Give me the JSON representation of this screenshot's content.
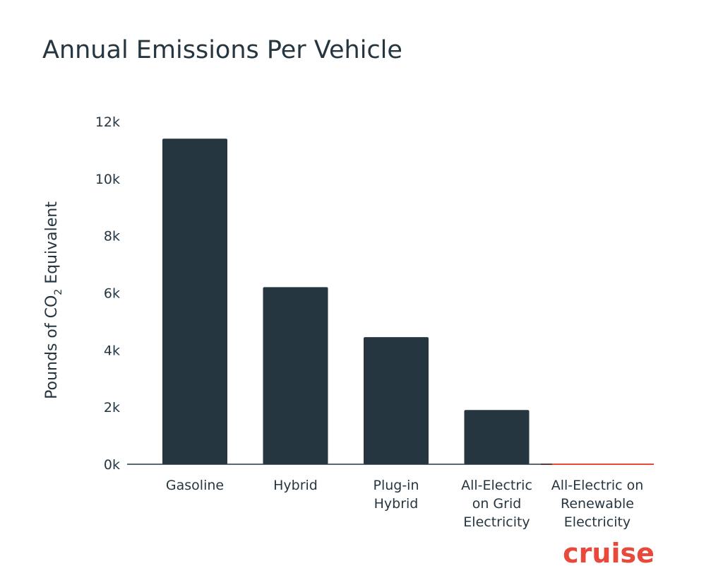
{
  "chart_data": {
    "type": "bar",
    "title": "Annual Emissions Per Vehicle",
    "ylabel_parts": [
      "Pounds of CO",
      "2",
      " Equivalent"
    ],
    "ylim": [
      0,
      12000
    ],
    "yticks": [
      {
        "value": 0,
        "label": "0k"
      },
      {
        "value": 2000,
        "label": "2k"
      },
      {
        "value": 4000,
        "label": "4k"
      },
      {
        "value": 6000,
        "label": "6k"
      },
      {
        "value": 8000,
        "label": "8k"
      },
      {
        "value": 10000,
        "label": "10k"
      },
      {
        "value": 12000,
        "label": "12k"
      }
    ],
    "categories": [
      [
        "Gasoline"
      ],
      [
        "Hybrid"
      ],
      [
        "Plug-in",
        "Hybrid"
      ],
      [
        "All-Electric",
        "on Grid",
        "Electricity"
      ],
      [
        "All-Electric on",
        "Renewable",
        "Electricity"
      ]
    ],
    "values": [
      11400,
      6200,
      4450,
      1900,
      0
    ],
    "grid": false,
    "legend": false
  },
  "colors": {
    "bar": "#263640",
    "text": "#263640",
    "baseline": "#263640",
    "zero_value_line": "#e8493b",
    "logo": "#e8493b"
  },
  "logo": {
    "text": "cruise"
  }
}
